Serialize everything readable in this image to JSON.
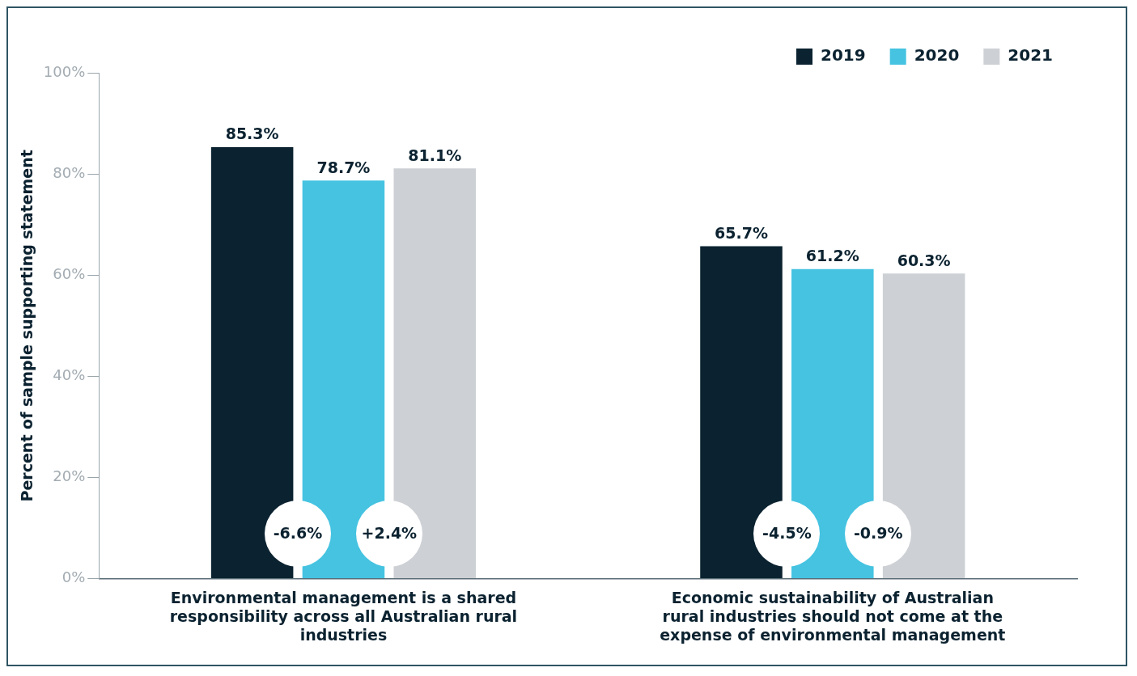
{
  "chart_data": {
    "type": "bar",
    "ylabel": "Percent of sample supporting statement",
    "categories": [
      "Environmental management is a shared responsibility across all Australian rural industries",
      "Economic sustainability of Australian rural industries should not come at the expense of environmental management"
    ],
    "series": [
      {
        "name": "2019",
        "color": "#0b2230",
        "values": [
          85.3,
          65.7
        ],
        "value_labels": [
          "85.3%",
          "65.7%"
        ]
      },
      {
        "name": "2020",
        "color": "#45c3e1",
        "values": [
          78.7,
          61.2
        ],
        "value_labels": [
          "78.7%",
          "61.2%"
        ]
      },
      {
        "name": "2021",
        "color": "#cdd0d4",
        "values": [
          81.1,
          60.3
        ],
        "value_labels": [
          "81.1%",
          "60.3%"
        ]
      }
    ],
    "ylim": [
      0,
      100
    ],
    "yticks": [
      {
        "value": 0,
        "label": "0%"
      },
      {
        "value": 20,
        "label": "20%"
      },
      {
        "value": 40,
        "label": "40%"
      },
      {
        "value": 60,
        "label": "60%"
      },
      {
        "value": 80,
        "label": "80%"
      },
      {
        "value": 100,
        "label": "100%"
      }
    ],
    "grid": false,
    "legend": "top right",
    "annotations": [
      "-6.6%",
      "+2.4%",
      "-4.5%",
      "-0.9%"
    ]
  }
}
